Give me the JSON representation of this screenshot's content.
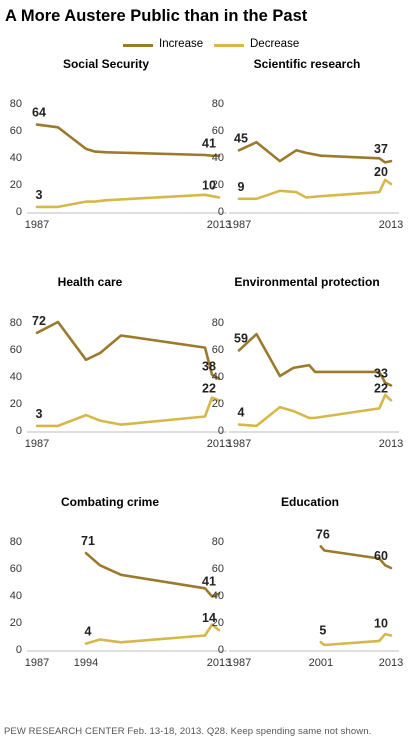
{
  "title": "A More Austere Public than in the Past",
  "legend": {
    "increase": {
      "label": "Increase",
      "color": "#9c7a2c"
    },
    "decrease": {
      "label": "Decrease",
      "color": "#d6b84a"
    }
  },
  "footnote": "PEW RESEARCH CENTER Feb. 13-18, 2013. Q28. Keep spending same not shown.",
  "chart_data": [
    {
      "type": "line",
      "title": "Social Security",
      "xlim": [
        1987,
        2013
      ],
      "ylim": [
        0,
        80
      ],
      "yticks": [
        0,
        20,
        40,
        60,
        80
      ],
      "xtick_labels": [
        "1987",
        "2013"
      ],
      "series": [
        {
          "name": "Increase",
          "x": [
            1987,
            1990,
            1994,
            1995.3,
            1997,
            2011,
            2012,
            2013
          ],
          "values": [
            64,
            62,
            46,
            44,
            43.5,
            41.5,
            41,
            41
          ],
          "labels": [
            {
              "x": 1987,
              "text": "64"
            },
            {
              "x": 2013,
              "text": "41"
            }
          ]
        },
        {
          "name": "Decrease",
          "x": [
            1987,
            1990,
            1994,
            1995.3,
            1997,
            2011,
            2012,
            2013
          ],
          "values": [
            3,
            3,
            7,
            7,
            8,
            12,
            11,
            10
          ],
          "labels": [
            {
              "x": 1987,
              "text": "3"
            },
            {
              "x": 2013,
              "text": "10"
            }
          ]
        }
      ]
    },
    {
      "type": "line",
      "title": "Scientific research",
      "xlim": [
        1987,
        2013
      ],
      "ylim": [
        0,
        80
      ],
      "yticks": [
        0,
        20,
        40,
        60,
        80
      ],
      "xtick_labels": [
        "1987",
        "2013"
      ],
      "series": [
        {
          "name": "Increase",
          "x": [
            1987,
            1990,
            1994,
            1996.8,
            1998.5,
            2001,
            2011,
            2012,
            2013
          ],
          "values": [
            45,
            51,
            37,
            45,
            43,
            41,
            39,
            36,
            37
          ],
          "labels": [
            {
              "x": 1987,
              "text": "45"
            },
            {
              "x": 2013,
              "text": "37"
            }
          ]
        },
        {
          "name": "Decrease",
          "x": [
            1987,
            1990,
            1994,
            1996.8,
            1998.5,
            2001,
            2011,
            2012,
            2013
          ],
          "values": [
            9,
            9,
            15,
            14,
            10,
            11,
            14,
            23,
            20
          ],
          "labels": [
            {
              "x": 1987,
              "text": "9"
            },
            {
              "x": 2013,
              "text": "20"
            }
          ]
        }
      ]
    },
    {
      "type": "line",
      "title": "Health care",
      "xlim": [
        1987,
        2013
      ],
      "ylim": [
        0,
        80
      ],
      "yticks": [
        0,
        20,
        40,
        60,
        80
      ],
      "xtick_labels": [
        "1987",
        "2013"
      ],
      "series": [
        {
          "name": "Increase",
          "x": [
            1987,
            1990,
            1994,
            1996,
            1999,
            2011,
            2012,
            2013
          ],
          "values": [
            72,
            80,
            52,
            57,
            70,
            61,
            41,
            38
          ],
          "labels": [
            {
              "x": 1987,
              "text": "72"
            },
            {
              "x": 2013,
              "text": "38"
            }
          ]
        },
        {
          "name": "Decrease",
          "x": [
            1987,
            1990,
            1994,
            1996,
            1999,
            2011,
            2012,
            2013
          ],
          "values": [
            3,
            3,
            11,
            7,
            4,
            10,
            24,
            22
          ],
          "labels": [
            {
              "x": 1987,
              "text": "3"
            },
            {
              "x": 2013,
              "text": "22"
            }
          ]
        }
      ]
    },
    {
      "type": "line",
      "title": "Environmental protection",
      "xlim": [
        1987,
        2013
      ],
      "ylim": [
        0,
        80
      ],
      "yticks": [
        0,
        20,
        40,
        60,
        80
      ],
      "xtick_labels": [
        "1987",
        "2013"
      ],
      "series": [
        {
          "name": "Increase",
          "x": [
            1987,
            1990,
            1994,
            1996.3,
            1999,
            2000,
            2011,
            2012,
            2013
          ],
          "values": [
            59,
            71,
            40,
            46,
            48,
            43,
            43,
            35,
            33
          ],
          "labels": [
            {
              "x": 1987,
              "text": "59"
            },
            {
              "x": 2013,
              "text": "33"
            }
          ]
        },
        {
          "name": "Decrease",
          "x": [
            1987,
            1990,
            1994,
            1996.3,
            1999,
            2000,
            2011,
            2012,
            2013
          ],
          "values": [
            4,
            3,
            17,
            14,
            9,
            9,
            16,
            26,
            22
          ],
          "labels": [
            {
              "x": 1987,
              "text": "4"
            },
            {
              "x": 2013,
              "text": "22"
            }
          ]
        }
      ]
    },
    {
      "type": "line",
      "title": "Combating crime",
      "xlim": [
        1987,
        2013
      ],
      "ylim": [
        0,
        80
      ],
      "yticks": [
        0,
        20,
        40,
        60,
        80
      ],
      "xtick_labels": [
        "1987",
        "1994",
        "2013"
      ],
      "series": [
        {
          "name": "Increase",
          "x": [
            1994,
            1996,
            1999,
            2011,
            2012,
            2013
          ],
          "values": [
            71,
            62,
            55,
            45,
            39,
            41
          ],
          "labels": [
            {
              "x": 1994,
              "text": "71"
            },
            {
              "x": 2013,
              "text": "41"
            }
          ]
        },
        {
          "name": "Decrease",
          "x": [
            1994,
            1996,
            1999,
            2011,
            2012,
            2013
          ],
          "values": [
            4,
            7,
            5,
            10,
            18,
            14
          ],
          "labels": [
            {
              "x": 1994,
              "text": "4"
            },
            {
              "x": 2013,
              "text": "14"
            }
          ]
        }
      ]
    },
    {
      "type": "line",
      "title": "Education",
      "xlim": [
        1987,
        2013
      ],
      "ylim": [
        0,
        80
      ],
      "yticks": [
        0,
        20,
        40,
        60,
        80
      ],
      "xtick_labels": [
        "1987",
        "2001",
        "2013"
      ],
      "series": [
        {
          "name": "Increase",
          "x": [
            2001,
            2001.6,
            2011,
            2012,
            2013
          ],
          "values": [
            76,
            73,
            67,
            62,
            60
          ],
          "labels": [
            {
              "x": 2001,
              "text": "76"
            },
            {
              "x": 2013,
              "text": "60"
            }
          ]
        },
        {
          "name": "Decrease",
          "x": [
            2001,
            2001.6,
            2011,
            2012,
            2013
          ],
          "values": [
            5,
            3,
            6,
            11,
            10
          ],
          "labels": [
            {
              "x": 2001,
              "text": "5"
            },
            {
              "x": 2013,
              "text": "10"
            }
          ]
        }
      ]
    }
  ]
}
